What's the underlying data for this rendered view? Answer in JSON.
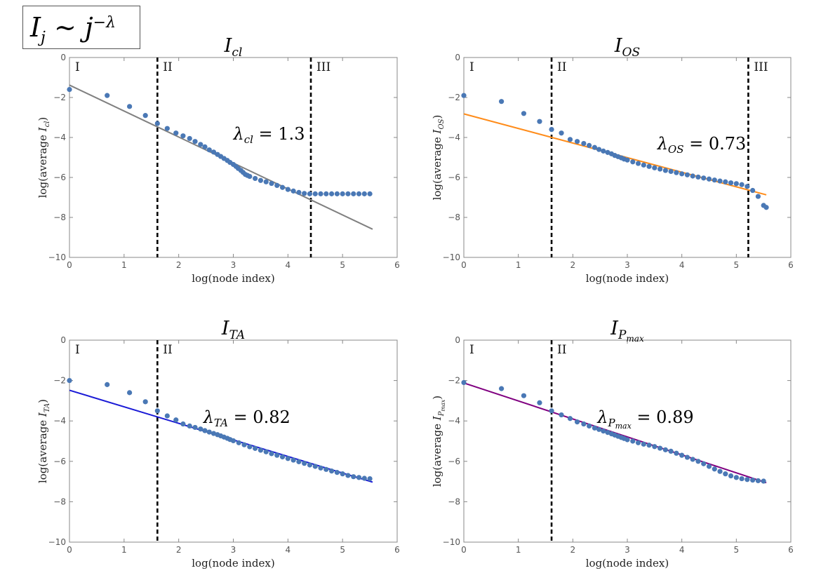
{
  "formula": {
    "base": "I",
    "sub": "j",
    "op": "∼",
    "var": "j",
    "sup": "−λ"
  },
  "chart_data": [
    {
      "id": "cl",
      "type": "scatter",
      "title": {
        "base": "I",
        "sub": "cl"
      },
      "xlabel": "log(node index)",
      "ylabel": {
        "pre": "log(average ",
        "base": "I",
        "sub": "cl",
        "post": ")"
      },
      "xlim": [
        0,
        6
      ],
      "ylim": [
        -10,
        0
      ],
      "xticks": [
        0,
        1,
        2,
        3,
        4,
        5,
        6
      ],
      "yticks": [
        0,
        -2,
        -4,
        -6,
        -8,
        -10
      ],
      "regions": [
        {
          "label": "I",
          "x_start": 0
        },
        {
          "label": "II",
          "x_start": 1.61
        },
        {
          "label": "III",
          "x_start": 4.42
        }
      ],
      "dividers": [
        1.61,
        4.42
      ],
      "fit": {
        "lambda_sub": "cl",
        "lambda_value": "1.3",
        "x": [
          0,
          5.55
        ],
        "y": [
          -1.38,
          -8.59
        ],
        "color": "#808080"
      },
      "points": [
        [
          0,
          -1.6
        ],
        [
          0.69,
          -1.9
        ],
        [
          1.1,
          -2.45
        ],
        [
          1.39,
          -2.9
        ],
        [
          1.61,
          -3.3
        ],
        [
          1.79,
          -3.55
        ],
        [
          1.95,
          -3.78
        ],
        [
          2.08,
          -3.92
        ],
        [
          2.2,
          -4.05
        ],
        [
          2.3,
          -4.2
        ],
        [
          2.4,
          -4.35
        ],
        [
          2.48,
          -4.47
        ],
        [
          2.56,
          -4.62
        ],
        [
          2.64,
          -4.73
        ],
        [
          2.71,
          -4.85
        ],
        [
          2.77,
          -4.95
        ],
        [
          2.83,
          -5.05
        ],
        [
          2.89,
          -5.15
        ],
        [
          2.94,
          -5.25
        ],
        [
          3.0,
          -5.35
        ],
        [
          3.05,
          -5.45
        ],
        [
          3.09,
          -5.55
        ],
        [
          3.14,
          -5.65
        ],
        [
          3.18,
          -5.75
        ],
        [
          3.22,
          -5.85
        ],
        [
          3.26,
          -5.9
        ],
        [
          3.3,
          -5.95
        ],
        [
          3.4,
          -6.05
        ],
        [
          3.5,
          -6.15
        ],
        [
          3.6,
          -6.22
        ],
        [
          3.7,
          -6.3
        ],
        [
          3.8,
          -6.4
        ],
        [
          3.9,
          -6.5
        ],
        [
          4.0,
          -6.6
        ],
        [
          4.1,
          -6.68
        ],
        [
          4.2,
          -6.75
        ],
        [
          4.3,
          -6.8
        ],
        [
          4.4,
          -6.82
        ],
        [
          4.5,
          -6.82
        ],
        [
          4.6,
          -6.82
        ],
        [
          4.7,
          -6.82
        ],
        [
          4.8,
          -6.82
        ],
        [
          4.9,
          -6.82
        ],
        [
          5.0,
          -6.82
        ],
        [
          5.1,
          -6.82
        ],
        [
          5.2,
          -6.82
        ],
        [
          5.3,
          -6.82
        ],
        [
          5.4,
          -6.82
        ],
        [
          5.5,
          -6.82
        ]
      ]
    },
    {
      "id": "os",
      "type": "scatter",
      "title": {
        "base": "I",
        "sub": "OS"
      },
      "xlabel": "log(node index)",
      "ylabel": {
        "pre": "log(average ",
        "base": "I",
        "sub": "OS",
        "post": ")"
      },
      "xlim": [
        0,
        6
      ],
      "ylim": [
        -10,
        0
      ],
      "xticks": [
        0,
        1,
        2,
        3,
        4,
        5,
        6
      ],
      "yticks": [
        0,
        -2,
        -4,
        -6,
        -8,
        -10
      ],
      "regions": [
        {
          "label": "I",
          "x_start": 0
        },
        {
          "label": "II",
          "x_start": 1.61
        },
        {
          "label": "III",
          "x_start": 5.22
        }
      ],
      "dividers": [
        1.61,
        5.22
      ],
      "fit": {
        "lambda_sub": "OS",
        "lambda_value": "0.73",
        "x": [
          0,
          5.55
        ],
        "y": [
          -2.82,
          -6.87
        ],
        "color": "#ff8c1a"
      },
      "points": [
        [
          0,
          -1.9
        ],
        [
          0.69,
          -2.2
        ],
        [
          1.1,
          -2.8
        ],
        [
          1.39,
          -3.2
        ],
        [
          1.61,
          -3.6
        ],
        [
          1.79,
          -3.78
        ],
        [
          1.95,
          -4.1
        ],
        [
          2.08,
          -4.2
        ],
        [
          2.2,
          -4.3
        ],
        [
          2.3,
          -4.4
        ],
        [
          2.4,
          -4.5
        ],
        [
          2.48,
          -4.6
        ],
        [
          2.56,
          -4.68
        ],
        [
          2.64,
          -4.75
        ],
        [
          2.71,
          -4.82
        ],
        [
          2.77,
          -4.9
        ],
        [
          2.83,
          -4.96
        ],
        [
          2.89,
          -5.02
        ],
        [
          2.94,
          -5.08
        ],
        [
          3.0,
          -5.13
        ],
        [
          3.1,
          -5.22
        ],
        [
          3.2,
          -5.3
        ],
        [
          3.3,
          -5.38
        ],
        [
          3.4,
          -5.45
        ],
        [
          3.5,
          -5.52
        ],
        [
          3.6,
          -5.58
        ],
        [
          3.7,
          -5.65
        ],
        [
          3.8,
          -5.7
        ],
        [
          3.9,
          -5.76
        ],
        [
          4.0,
          -5.82
        ],
        [
          4.1,
          -5.87
        ],
        [
          4.2,
          -5.93
        ],
        [
          4.3,
          -5.98
        ],
        [
          4.4,
          -6.03
        ],
        [
          4.5,
          -6.08
        ],
        [
          4.6,
          -6.13
        ],
        [
          4.7,
          -6.18
        ],
        [
          4.8,
          -6.22
        ],
        [
          4.9,
          -6.27
        ],
        [
          5.0,
          -6.31
        ],
        [
          5.1,
          -6.36
        ],
        [
          5.2,
          -6.45
        ],
        [
          5.3,
          -6.65
        ],
        [
          5.4,
          -6.95
        ],
        [
          5.5,
          -7.4
        ],
        [
          5.55,
          -7.5
        ]
      ]
    },
    {
      "id": "ta",
      "type": "scatter",
      "title": {
        "base": "I",
        "sub": "TA"
      },
      "xlabel": "log(node index)",
      "ylabel": {
        "pre": "log(average ",
        "base": "I",
        "sub": "TA",
        "post": ")"
      },
      "xlim": [
        0,
        6
      ],
      "ylim": [
        -10,
        0
      ],
      "xticks": [
        0,
        1,
        2,
        3,
        4,
        5,
        6
      ],
      "yticks": [
        0,
        -2,
        -4,
        -6,
        -8,
        -10
      ],
      "regions": [
        {
          "label": "I",
          "x_start": 0
        },
        {
          "label": "II",
          "x_start": 1.61
        }
      ],
      "dividers": [
        1.61
      ],
      "fit": {
        "lambda_sub": "TA",
        "lambda_value": "0.82",
        "x": [
          0,
          5.55
        ],
        "y": [
          -2.48,
          -7.03
        ],
        "color": "#1a1ad6"
      },
      "points": [
        [
          0,
          -2.0
        ],
        [
          0.69,
          -2.2
        ],
        [
          1.1,
          -2.6
        ],
        [
          1.39,
          -3.05
        ],
        [
          1.61,
          -3.5
        ],
        [
          1.79,
          -3.75
        ],
        [
          1.95,
          -3.95
        ],
        [
          2.08,
          -4.15
        ],
        [
          2.2,
          -4.25
        ],
        [
          2.3,
          -4.32
        ],
        [
          2.4,
          -4.4
        ],
        [
          2.48,
          -4.48
        ],
        [
          2.56,
          -4.55
        ],
        [
          2.64,
          -4.62
        ],
        [
          2.71,
          -4.68
        ],
        [
          2.77,
          -4.74
        ],
        [
          2.83,
          -4.8
        ],
        [
          2.89,
          -4.86
        ],
        [
          2.94,
          -4.92
        ],
        [
          3.0,
          -4.98
        ],
        [
          3.1,
          -5.08
        ],
        [
          3.2,
          -5.18
        ],
        [
          3.3,
          -5.28
        ],
        [
          3.4,
          -5.36
        ],
        [
          3.5,
          -5.45
        ],
        [
          3.6,
          -5.53
        ],
        [
          3.7,
          -5.62
        ],
        [
          3.8,
          -5.7
        ],
        [
          3.9,
          -5.78
        ],
        [
          4.0,
          -5.86
        ],
        [
          4.1,
          -5.94
        ],
        [
          4.2,
          -6.02
        ],
        [
          4.3,
          -6.1
        ],
        [
          4.4,
          -6.18
        ],
        [
          4.5,
          -6.25
        ],
        [
          4.6,
          -6.33
        ],
        [
          4.7,
          -6.4
        ],
        [
          4.8,
          -6.48
        ],
        [
          4.9,
          -6.55
        ],
        [
          5.0,
          -6.62
        ],
        [
          5.1,
          -6.7
        ],
        [
          5.2,
          -6.76
        ],
        [
          5.3,
          -6.8
        ],
        [
          5.4,
          -6.84
        ],
        [
          5.5,
          -6.86
        ]
      ]
    },
    {
      "id": "pmax",
      "type": "scatter",
      "title": {
        "base": "I",
        "sub": "P",
        "subsub": "max"
      },
      "xlabel": "log(node index)",
      "ylabel": {
        "pre": "log(average ",
        "base": "I",
        "sub": "P",
        "subsub": "max",
        "post": ")"
      },
      "xlim": [
        0,
        6
      ],
      "ylim": [
        -10,
        0
      ],
      "xticks": [
        0,
        1,
        2,
        3,
        4,
        5,
        6
      ],
      "yticks": [
        0,
        -2,
        -4,
        -6,
        -8,
        -10
      ],
      "regions": [
        {
          "label": "I",
          "x_start": 0
        },
        {
          "label": "II",
          "x_start": 1.61
        }
      ],
      "dividers": [
        1.61
      ],
      "fit": {
        "lambda_sub": "P",
        "lambda_subsub": "max",
        "lambda_value": "0.89",
        "x": [
          0,
          5.55
        ],
        "y": [
          -2.12,
          -7.06
        ],
        "color": "#800080"
      },
      "points": [
        [
          0,
          -2.1
        ],
        [
          0.69,
          -2.4
        ],
        [
          1.1,
          -2.75
        ],
        [
          1.39,
          -3.1
        ],
        [
          1.61,
          -3.5
        ],
        [
          1.79,
          -3.7
        ],
        [
          1.95,
          -3.88
        ],
        [
          2.08,
          -4.05
        ],
        [
          2.2,
          -4.15
        ],
        [
          2.3,
          -4.25
        ],
        [
          2.4,
          -4.35
        ],
        [
          2.48,
          -4.42
        ],
        [
          2.56,
          -4.5
        ],
        [
          2.64,
          -4.57
        ],
        [
          2.71,
          -4.64
        ],
        [
          2.77,
          -4.7
        ],
        [
          2.83,
          -4.76
        ],
        [
          2.89,
          -4.82
        ],
        [
          2.94,
          -4.87
        ],
        [
          3.0,
          -4.93
        ],
        [
          3.1,
          -5.0
        ],
        [
          3.2,
          -5.08
        ],
        [
          3.3,
          -5.15
        ],
        [
          3.4,
          -5.2
        ],
        [
          3.5,
          -5.27
        ],
        [
          3.6,
          -5.35
        ],
        [
          3.7,
          -5.43
        ],
        [
          3.8,
          -5.5
        ],
        [
          3.9,
          -5.6
        ],
        [
          4.0,
          -5.7
        ],
        [
          4.1,
          -5.8
        ],
        [
          4.2,
          -5.9
        ],
        [
          4.3,
          -6.0
        ],
        [
          4.4,
          -6.12
        ],
        [
          4.5,
          -6.25
        ],
        [
          4.6,
          -6.38
        ],
        [
          4.7,
          -6.5
        ],
        [
          4.8,
          -6.62
        ],
        [
          4.9,
          -6.72
        ],
        [
          5.0,
          -6.8
        ],
        [
          5.1,
          -6.86
        ],
        [
          5.2,
          -6.9
        ],
        [
          5.3,
          -6.93
        ],
        [
          5.4,
          -6.96
        ],
        [
          5.5,
          -6.98
        ]
      ]
    }
  ]
}
